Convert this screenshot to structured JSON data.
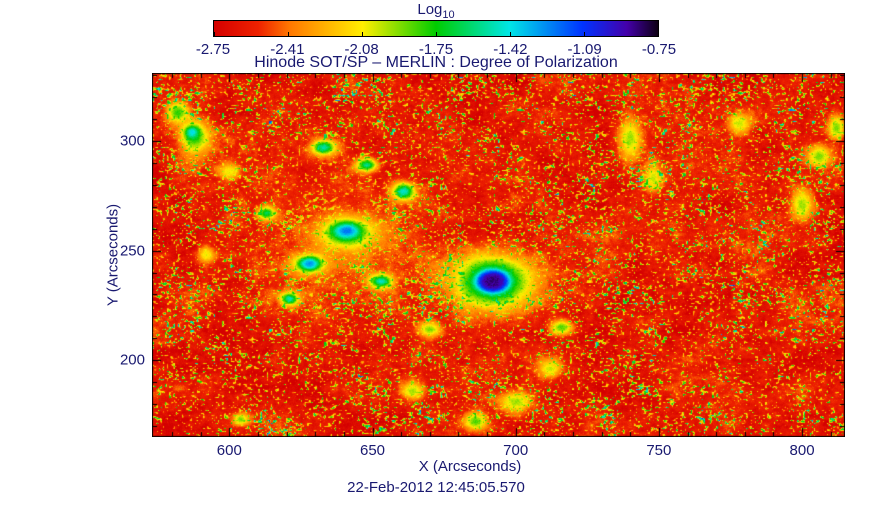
{
  "figure": {
    "title": "Hinode SOT/SP – MERLIN : Degree of Polarization",
    "caption": "22-Feb-2012 12:45:05.570",
    "text_color": "#191970",
    "axis_color": "#000000",
    "background_color": "#ffffff"
  },
  "colorbar": {
    "label_main": "Log",
    "label_sub": "10",
    "tick_labels": [
      "-2.75",
      "-2.41",
      "-2.08",
      "-1.75",
      "-1.42",
      "-1.09",
      "-0.75"
    ]
  },
  "chart_data": {
    "type": "heatmap",
    "title": "Hinode SOT/SP – MERLIN : Degree of Polarization",
    "timestamp": "22-Feb-2012 12:45:05.570",
    "value_label": "Log10(Degree of Polarization)",
    "value_range": [
      -2.75,
      -0.75
    ],
    "background_level": -2.62,
    "colormap_stops": [
      {
        "t": 0.0,
        "color": "#d40000"
      },
      {
        "t": 0.1,
        "color": "#ee2200"
      },
      {
        "t": 0.17,
        "color": "#ff7700"
      },
      {
        "t": 0.335,
        "color": "#ffee00"
      },
      {
        "t": 0.5,
        "color": "#00cc00"
      },
      {
        "t": 0.665,
        "color": "#00e6e6"
      },
      {
        "t": 0.83,
        "color": "#0033ff"
      },
      {
        "t": 0.93,
        "color": "#4400aa"
      },
      {
        "t": 1.0,
        "color": "#0d0014"
      }
    ],
    "axes": {
      "xlabel": "X (Arcseconds)",
      "ylabel": "Y (Arcseconds)",
      "xlim": [
        573,
        815
      ],
      "ylim": [
        165,
        331
      ],
      "x_ticks": [
        600,
        650,
        700,
        750,
        800
      ],
      "y_ticks": [
        200,
        250,
        300
      ],
      "x_major_step": 50,
      "x_minor_step": 10,
      "y_major_step": 50,
      "y_minor_step": 10
    },
    "noise": {
      "base_octaves": [
        {
          "scale": 0.07,
          "amp": 0.2
        },
        {
          "scale": 0.23,
          "amp": 0.16
        },
        {
          "scale": 0.75,
          "amp": 0.14
        }
      ],
      "speckle": {
        "scale": 1.35,
        "threshold": 0.8,
        "cluster_scale": 0.15,
        "cluster_depth": 0.24,
        "boost": 3.8
      },
      "grain": 0.08
    },
    "features": [
      {
        "name": "plage-wash",
        "x": 638,
        "y": 258,
        "rx": 26,
        "ry": 34,
        "level": -2.28,
        "shape": "gauss",
        "gain": 0.5
      },
      {
        "name": "sunspot-halo",
        "x": 692,
        "y": 236,
        "rx": 18,
        "ry": 15,
        "level": -1.9,
        "shape": "gauss",
        "gain": 0.8
      },
      {
        "name": "sunspot-ring",
        "x": 692,
        "y": 236,
        "rx": 9.5,
        "ry": 8.5,
        "level": -1.35,
        "shape": "gauss"
      },
      {
        "name": "sunspot-core",
        "x": 692,
        "y": 236,
        "rx": 5.5,
        "ry": 5,
        "level": -0.85,
        "shape": "flat"
      },
      {
        "name": "plage-blob",
        "x": 641,
        "y": 258,
        "rx": 9,
        "ry": 7,
        "level": -1.75,
        "shape": "gauss"
      },
      {
        "name": "plage-core",
        "x": 641,
        "y": 259,
        "rx": 4.5,
        "ry": 3.5,
        "level": -1.2,
        "shape": "gauss"
      },
      {
        "name": "plage-blob",
        "x": 628,
        "y": 244,
        "rx": 5,
        "ry": 4,
        "level": -1.55,
        "shape": "gauss"
      },
      {
        "name": "plage-core",
        "x": 628,
        "y": 244,
        "rx": 3,
        "ry": 2.5,
        "level": -1.28,
        "shape": "gauss"
      },
      {
        "name": "plage-blob",
        "x": 653,
        "y": 236,
        "rx": 4,
        "ry": 3.2,
        "level": -1.45,
        "shape": "gauss"
      },
      {
        "name": "plage-blob",
        "x": 621,
        "y": 228,
        "rx": 3.2,
        "ry": 3,
        "level": -1.5,
        "shape": "gauss"
      },
      {
        "name": "plage-blob",
        "x": 661,
        "y": 277,
        "rx": 4,
        "ry": 4,
        "level": -1.45,
        "shape": "gauss"
      },
      {
        "name": "plage-blob",
        "x": 648,
        "y": 289,
        "rx": 3.6,
        "ry": 3,
        "level": -1.55,
        "shape": "gauss"
      },
      {
        "name": "plage-blob",
        "x": 633,
        "y": 297,
        "rx": 4,
        "ry": 3.4,
        "level": -1.5,
        "shape": "gauss"
      },
      {
        "name": "plage-blob",
        "x": 613,
        "y": 267,
        "rx": 3,
        "ry": 3,
        "level": -1.62,
        "shape": "gauss"
      },
      {
        "name": "network-patch",
        "x": 588,
        "y": 301,
        "rx": 6,
        "ry": 8,
        "level": -1.85,
        "shape": "gauss"
      },
      {
        "name": "network-core",
        "x": 587,
        "y": 304,
        "rx": 2.6,
        "ry": 3,
        "level": -1.38,
        "shape": "gauss"
      },
      {
        "name": "network-patch",
        "x": 582,
        "y": 313,
        "rx": 4,
        "ry": 5,
        "level": -1.8,
        "shape": "gauss"
      },
      {
        "name": "network-patch",
        "x": 600,
        "y": 286,
        "rx": 4,
        "ry": 4,
        "level": -2.05,
        "shape": "gauss"
      },
      {
        "name": "network-patch",
        "x": 740,
        "y": 301,
        "rx": 4,
        "ry": 9,
        "level": -1.95,
        "shape": "gauss"
      },
      {
        "name": "network-patch",
        "x": 748,
        "y": 283,
        "rx": 3,
        "ry": 6,
        "level": -2.0,
        "shape": "gauss"
      },
      {
        "name": "network-patch",
        "x": 800,
        "y": 271,
        "rx": 4,
        "ry": 7,
        "level": -1.95,
        "shape": "gauss"
      },
      {
        "name": "network-patch",
        "x": 806,
        "y": 293,
        "rx": 4,
        "ry": 5,
        "level": -1.9,
        "shape": "gauss"
      },
      {
        "name": "network-patch",
        "x": 812,
        "y": 306,
        "rx": 3,
        "ry": 6,
        "level": -1.9,
        "shape": "gauss"
      },
      {
        "name": "network-patch",
        "x": 778,
        "y": 308,
        "rx": 4,
        "ry": 5,
        "level": -2.0,
        "shape": "gauss"
      },
      {
        "name": "network-patch",
        "x": 700,
        "y": 181,
        "rx": 6,
        "ry": 5,
        "level": -1.95,
        "shape": "gauss"
      },
      {
        "name": "network-patch",
        "x": 686,
        "y": 172,
        "rx": 4,
        "ry": 4,
        "level": -1.85,
        "shape": "gauss"
      },
      {
        "name": "network-patch",
        "x": 712,
        "y": 196,
        "rx": 4,
        "ry": 4,
        "level": -2.0,
        "shape": "gauss"
      },
      {
        "name": "network-patch",
        "x": 664,
        "y": 186,
        "rx": 4,
        "ry": 4,
        "level": -1.95,
        "shape": "gauss"
      },
      {
        "name": "network-patch",
        "x": 716,
        "y": 215,
        "rx": 4,
        "ry": 3.6,
        "level": -1.85,
        "shape": "gauss"
      },
      {
        "name": "network-patch",
        "x": 670,
        "y": 214,
        "rx": 4,
        "ry": 3.6,
        "level": -1.9,
        "shape": "gauss"
      },
      {
        "name": "network-patch",
        "x": 592,
        "y": 248,
        "rx": 3,
        "ry": 4,
        "level": -2.05,
        "shape": "gauss"
      },
      {
        "name": "network-patch",
        "x": 604,
        "y": 173,
        "rx": 3,
        "ry": 3,
        "level": -1.9,
        "shape": "gauss"
      }
    ]
  }
}
